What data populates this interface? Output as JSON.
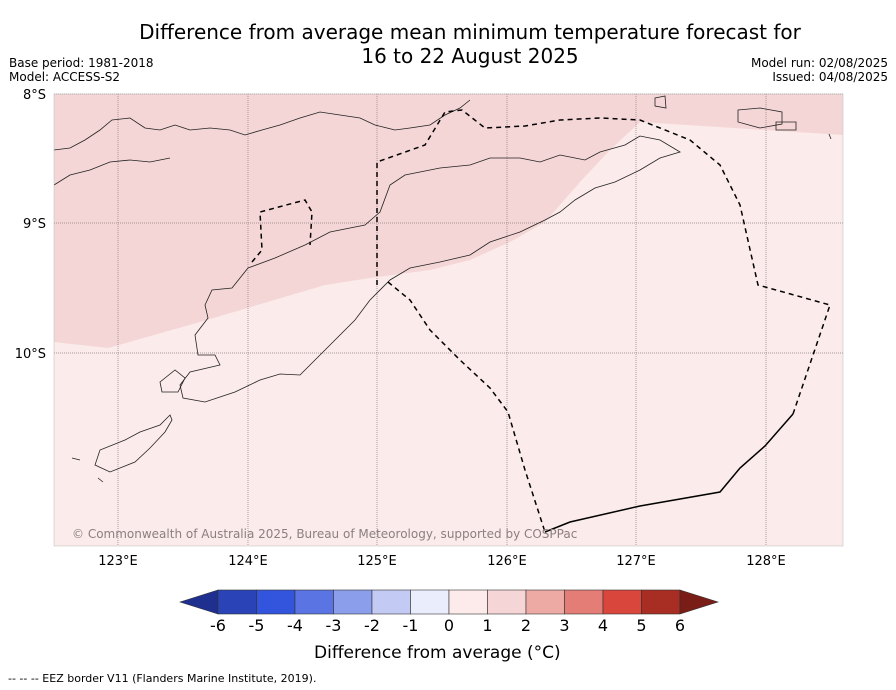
{
  "title_line1": "Difference from average mean minimum temperature forecast for",
  "title_line2": "16 to 22 August 2025",
  "base_period": "Base period: 1981-2018",
  "model": "Model: ACCESS-S2",
  "model_run": "Model run: 02/08/2025",
  "issued": "Issued: 04/08/2025",
  "lat_labels": [
    "8°S",
    "9°S",
    "10°S"
  ],
  "lon_labels": [
    "123°E",
    "124°E",
    "125°E",
    "126°E",
    "127°E",
    "128°E"
  ],
  "copyright": "© Commonwealth of Australia 2025, Bureau of Meteorology, supported by COSPPac",
  "colorbar": {
    "title": "Difference from average (°C)",
    "ticks": [
      "-6",
      "-5",
      "-4",
      "-3",
      "-2",
      "-1",
      "0",
      "1",
      "2",
      "3",
      "4",
      "5",
      "6"
    ],
    "colors": [
      "#1f2f8f",
      "#2a44b8",
      "#3355dd",
      "#5b74e4",
      "#8a9eec",
      "#c3cbf5",
      "#eaedfc",
      "#fcebea",
      "#f5d5d5",
      "#edaaa5",
      "#e47d76",
      "#d9463c",
      "#a82d22",
      "#7a1d17"
    ]
  },
  "footnote": "--  --  -- EEZ border V11 (Flanders Marine Institute, 2019).",
  "regions": {
    "light_fill": "#fbebea",
    "medium_fill": "#f5d6d6"
  }
}
